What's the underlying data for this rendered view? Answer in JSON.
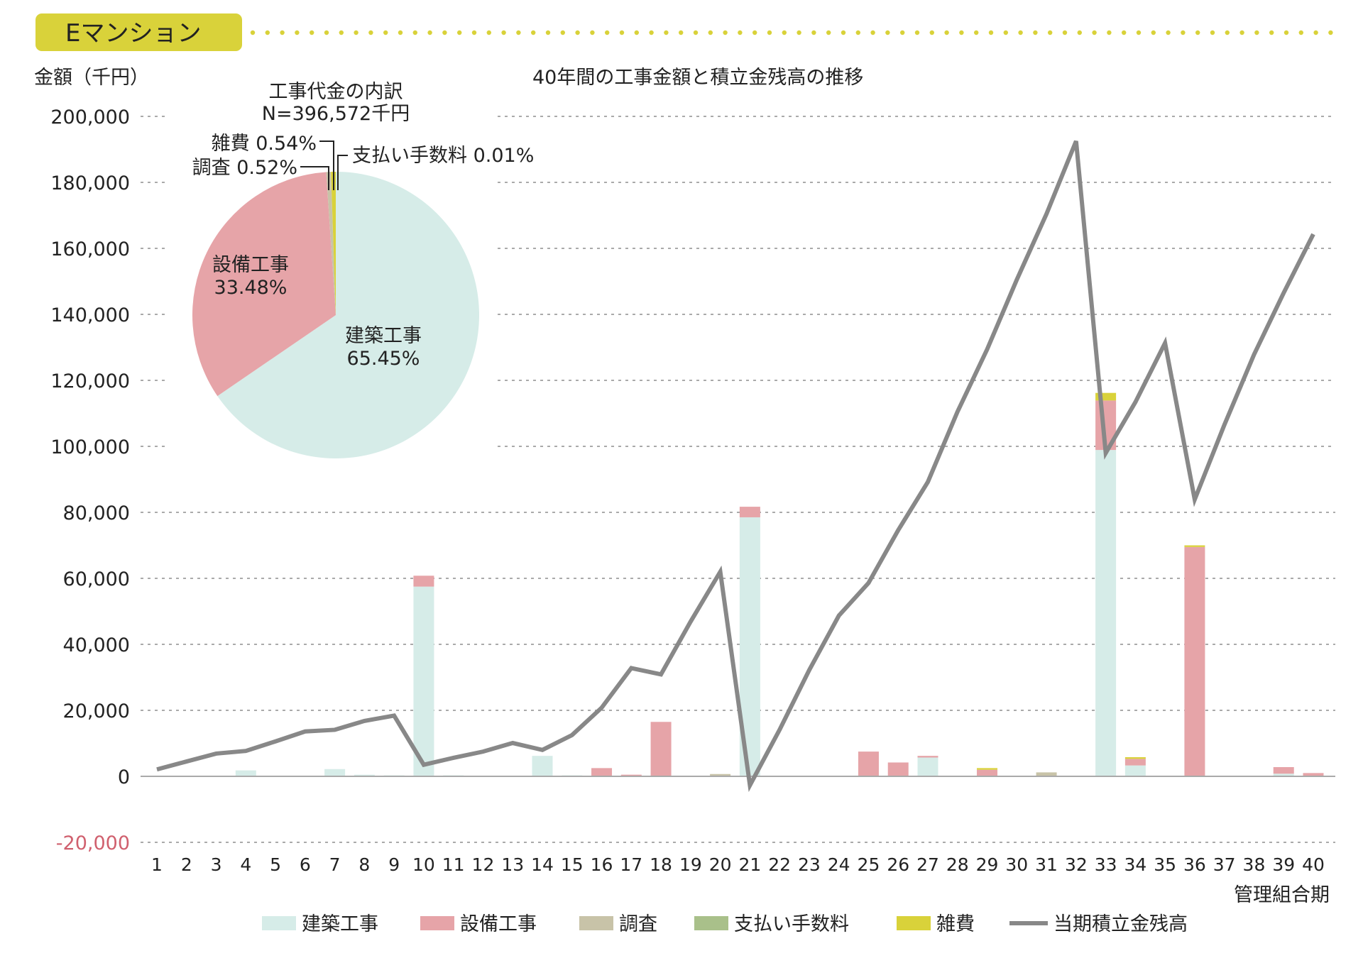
{
  "header": {
    "title": "Eマンション",
    "accent": "#d9d23a"
  },
  "chart_data": [
    {
      "type": "bar+line",
      "title": "40年間の工事金額と積立金残高の推移",
      "ylabel": "金額（千円）",
      "xlabel": "管理組合期",
      "ylim": [
        -20000,
        200000
      ],
      "yticks": [
        -20000,
        0,
        20000,
        40000,
        60000,
        80000,
        100000,
        120000,
        140000,
        160000,
        180000,
        200000
      ],
      "ytick_labels": [
        "-20,000",
        "0",
        "20,000",
        "40,000",
        "60,000",
        "80,000",
        "100,000",
        "120,000",
        "140,000",
        "160,000",
        "180,000",
        "200,000"
      ],
      "negative_tick_color": "#d0606e",
      "grid": true,
      "legend_position": "bottom",
      "categories": [
        "1",
        "2",
        "3",
        "4",
        "5",
        "6",
        "7",
        "8",
        "9",
        "10",
        "11",
        "12",
        "13",
        "14",
        "15",
        "16",
        "17",
        "18",
        "19",
        "20",
        "21",
        "22",
        "23",
        "24",
        "25",
        "26",
        "27",
        "28",
        "29",
        "30",
        "31",
        "32",
        "33",
        "34",
        "35",
        "36",
        "37",
        "38",
        "39",
        "40"
      ],
      "series": [
        {
          "name": "建築工事",
          "kind": "bar",
          "color": "#d6ece8",
          "values": [
            0,
            0,
            0,
            1800,
            0,
            0,
            2200,
            500,
            300,
            57500,
            300,
            0,
            0,
            6200,
            300,
            0,
            0,
            0,
            0,
            0,
            78500,
            0,
            0,
            0,
            0,
            0,
            5700,
            0,
            0,
            0,
            0,
            0,
            98900,
            3300,
            0,
            0,
            0,
            0,
            800,
            0
          ]
        },
        {
          "name": "設備工事",
          "kind": "bar",
          "color": "#e6a4a8",
          "values": [
            0,
            0,
            0,
            0,
            0,
            0,
            0,
            0,
            0,
            3300,
            0,
            0,
            0,
            0,
            0,
            2500,
            500,
            16500,
            0,
            0,
            3200,
            0,
            0,
            0,
            7500,
            4200,
            500,
            0,
            2000,
            0,
            0,
            0,
            15000,
            2000,
            0,
            69500,
            0,
            0,
            2000,
            1000
          ]
        },
        {
          "name": "調査",
          "kind": "bar",
          "color": "#c8c3a8",
          "values": [
            0,
            0,
            0,
            0,
            0,
            0,
            0,
            0,
            0,
            0,
            0,
            0,
            0,
            0,
            0,
            0,
            0,
            0,
            0,
            700,
            0,
            0,
            0,
            0,
            0,
            0,
            0,
            0,
            0,
            0,
            1200,
            0,
            0,
            0,
            0,
            0,
            0,
            0,
            0,
            0
          ]
        },
        {
          "name": "支払い手数料",
          "kind": "bar",
          "color": "#a9c08a",
          "values": [
            0,
            0,
            0,
            0,
            0,
            0,
            0,
            0,
            0,
            0,
            0,
            0,
            0,
            0,
            0,
            0,
            0,
            0,
            0,
            0,
            0,
            0,
            0,
            0,
            0,
            0,
            0,
            0,
            0,
            0,
            0,
            0,
            0,
            0,
            0,
            0,
            0,
            0,
            0,
            0
          ]
        },
        {
          "name": "雑費",
          "kind": "bar",
          "color": "#d9d23a",
          "values": [
            0,
            0,
            0,
            0,
            0,
            0,
            0,
            0,
            0,
            0,
            0,
            0,
            0,
            0,
            0,
            0,
            0,
            0,
            0,
            0,
            0,
            0,
            0,
            0,
            0,
            0,
            0,
            0,
            500,
            0,
            0,
            0,
            2300,
            500,
            0,
            500,
            0,
            0,
            0,
            0
          ]
        },
        {
          "name": "当期積立金残高",
          "kind": "line",
          "color": "#888888",
          "values": [
            2100,
            4500,
            6900,
            7700,
            10600,
            13600,
            14100,
            16800,
            18400,
            3500,
            5600,
            7500,
            10100,
            8000,
            12500,
            20800,
            32800,
            30900,
            46900,
            62000,
            -2700,
            14100,
            32200,
            48700,
            58600,
            74600,
            89200,
            110500,
            129400,
            150500,
            170400,
            192500,
            98000,
            113400,
            131300,
            83900,
            106500,
            127800,
            146500,
            164300
          ]
        }
      ]
    },
    {
      "type": "pie",
      "title": "工事代金の内訳",
      "subtitle": "N=396,572千円",
      "slices": [
        {
          "name": "建築工事",
          "value": 65.45,
          "label": "建築工事",
          "pct": "65.45%",
          "color": "#d6ece8"
        },
        {
          "name": "設備工事",
          "value": 33.48,
          "label": "設備工事",
          "pct": "33.48%",
          "color": "#e6a4a8"
        },
        {
          "name": "調査",
          "value": 0.52,
          "label": "調査 0.52%",
          "color": "#c8c3a8"
        },
        {
          "name": "支払い手数料",
          "value": 0.01,
          "label": "支払い手数料 0.01%",
          "color": "#a9c08a"
        },
        {
          "name": "雑費",
          "value": 0.54,
          "label": "雑費 0.54%",
          "color": "#d9d23a"
        }
      ]
    }
  ]
}
